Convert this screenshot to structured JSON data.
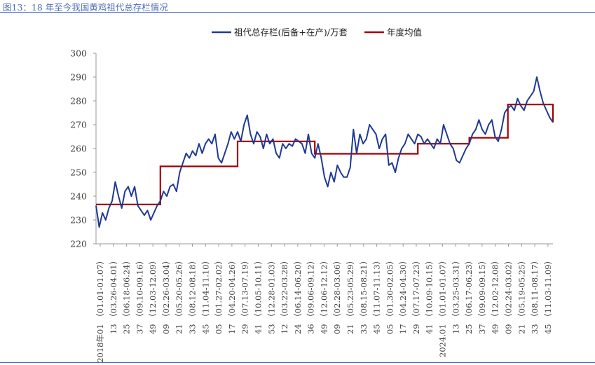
{
  "figure": {
    "title": "图13：18 年至今我国黄鸡祖代总存栏情况"
  },
  "chart_data": {
    "type": "line",
    "title": "",
    "xlabel": "",
    "ylabel": "",
    "ylim": [
      220,
      300
    ],
    "yticks": [
      220,
      230,
      240,
      250,
      260,
      270,
      280,
      290,
      300
    ],
    "grid": false,
    "legend_position": "top",
    "x_tick_labels": [
      "2018年01 （01.01-01.07）",
      "13 （03.26-04.01）",
      "25 （06.18-06.24）",
      "37 （09.10-09.16）",
      "49 （12.03-12.09）",
      "09 （02.26-03.04）",
      "21 （05.20-05.26）",
      "33 （08.12-08.18）",
      "45 （11.04-11.10）",
      "05 （01.27-02.02）",
      "17 （04.20-04.26）",
      "29 （07.13-07.19）",
      "41 （10.05-10.11）",
      "53 （12.28-01.03）",
      "12 （03.22-03.28）",
      "24 （06.14-06.20）",
      "36 （09.06-09.12）",
      "49 （12.06-12.12）",
      "09 （02.28-03.06）",
      "21 （05.23-05.29）",
      "33 （08.15-08.21）",
      "45 （11.07-11.13）",
      "05 （01.30-02.05）",
      "17 （04.24-04.30）",
      "29 （07.17-07.23）",
      "41 （10.09-10.15）",
      "2024.01 （01.01-01.07）",
      "13 （03.25-03.31）",
      "25 （06.17-06.23）",
      "37 （09.09-09.15）",
      "49 （12.02-12.08）",
      "09 （02.24-03.02）",
      "21 （05.19-05.25）",
      "33 （08.11-08.17）",
      "45 （11.03-11.09）"
    ],
    "series": [
      {
        "name": "祖代总存栏(后备+在产)/万套",
        "color": "#1f3a93",
        "anchors": [
          [
            0,
            236
          ],
          [
            2,
            227
          ],
          [
            4,
            233
          ],
          [
            6,
            230
          ],
          [
            8,
            235
          ],
          [
            10,
            238
          ],
          [
            12,
            246
          ],
          [
            14,
            240
          ],
          [
            16,
            235
          ],
          [
            18,
            242
          ],
          [
            20,
            244
          ],
          [
            22,
            240
          ],
          [
            24,
            244
          ],
          [
            26,
            236
          ],
          [
            28,
            234
          ],
          [
            30,
            232
          ],
          [
            32,
            234
          ],
          [
            34,
            230
          ],
          [
            36,
            233
          ],
          [
            38,
            236
          ],
          [
            40,
            238
          ],
          [
            42,
            242
          ],
          [
            44,
            240
          ],
          [
            46,
            244
          ],
          [
            48,
            245
          ],
          [
            50,
            242
          ],
          [
            52,
            250
          ],
          [
            54,
            254
          ],
          [
            56,
            258
          ],
          [
            58,
            256
          ],
          [
            60,
            259
          ],
          [
            62,
            257
          ],
          [
            64,
            262
          ],
          [
            66,
            258
          ],
          [
            68,
            262
          ],
          [
            70,
            264
          ],
          [
            72,
            262
          ],
          [
            74,
            266
          ],
          [
            76,
            256
          ],
          [
            78,
            254
          ],
          [
            80,
            258
          ],
          [
            82,
            262
          ],
          [
            84,
            267
          ],
          [
            86,
            264
          ],
          [
            88,
            267
          ],
          [
            90,
            263
          ],
          [
            92,
            270
          ],
          [
            94,
            274
          ],
          [
            96,
            266
          ],
          [
            98,
            262
          ],
          [
            100,
            267
          ],
          [
            102,
            265
          ],
          [
            104,
            260
          ],
          [
            106,
            266
          ],
          [
            108,
            262
          ],
          [
            110,
            264
          ],
          [
            112,
            258
          ],
          [
            114,
            256
          ],
          [
            116,
            262
          ],
          [
            118,
            260
          ],
          [
            120,
            262
          ],
          [
            122,
            261
          ],
          [
            124,
            264
          ],
          [
            126,
            263
          ],
          [
            128,
            262
          ],
          [
            130,
            258
          ],
          [
            132,
            266
          ],
          [
            134,
            258
          ],
          [
            136,
            256
          ],
          [
            138,
            262
          ],
          [
            140,
            256
          ],
          [
            142,
            248
          ],
          [
            144,
            244
          ],
          [
            146,
            250
          ],
          [
            148,
            246
          ],
          [
            150,
            253
          ],
          [
            152,
            250
          ],
          [
            154,
            248
          ],
          [
            156,
            248
          ],
          [
            158,
            252
          ],
          [
            160,
            268
          ],
          [
            162,
            258
          ],
          [
            164,
            266
          ],
          [
            166,
            262
          ],
          [
            168,
            264
          ],
          [
            170,
            270
          ],
          [
            172,
            268
          ],
          [
            174,
            266
          ],
          [
            176,
            260
          ],
          [
            178,
            264
          ],
          [
            180,
            266
          ],
          [
            182,
            253
          ],
          [
            184,
            254
          ],
          [
            186,
            250
          ],
          [
            188,
            256
          ],
          [
            190,
            260
          ],
          [
            192,
            262
          ],
          [
            194,
            266
          ],
          [
            196,
            264
          ],
          [
            198,
            262
          ],
          [
            200,
            266
          ],
          [
            202,
            265
          ],
          [
            204,
            262
          ],
          [
            206,
            264
          ],
          [
            208,
            262
          ],
          [
            210,
            260
          ],
          [
            212,
            264
          ],
          [
            214,
            262
          ],
          [
            216,
            270
          ],
          [
            218,
            266
          ],
          [
            220,
            262
          ],
          [
            222,
            260
          ],
          [
            224,
            255
          ],
          [
            226,
            254
          ],
          [
            228,
            257
          ],
          [
            230,
            260
          ],
          [
            232,
            262
          ],
          [
            234,
            266
          ],
          [
            236,
            268
          ],
          [
            238,
            272
          ],
          [
            240,
            268
          ],
          [
            242,
            266
          ],
          [
            244,
            270
          ],
          [
            246,
            272
          ],
          [
            248,
            265
          ],
          [
            250,
            263
          ],
          [
            252,
            268
          ],
          [
            254,
            275
          ],
          [
            256,
            277
          ],
          [
            258,
            278
          ],
          [
            260,
            276
          ],
          [
            262,
            281
          ],
          [
            264,
            278
          ],
          [
            266,
            276
          ],
          [
            268,
            280
          ],
          [
            270,
            282
          ],
          [
            272,
            284
          ],
          [
            274,
            290
          ],
          [
            276,
            284
          ],
          [
            278,
            279
          ],
          [
            280,
            276
          ],
          [
            282,
            273
          ],
          [
            284,
            271
          ]
        ]
      },
      {
        "name": "年度均值",
        "color": "#a00000",
        "steps": [
          {
            "x0": 0,
            "x1": 40,
            "value": 236.5
          },
          {
            "x0": 40,
            "x1": 88,
            "value": 252.5
          },
          {
            "x0": 88,
            "x1": 136,
            "value": 263.0
          },
          {
            "x0": 136,
            "x1": 200,
            "value": 257.8
          },
          {
            "x0": 200,
            "x1": 232,
            "value": 262.0
          },
          {
            "x0": 232,
            "x1": 256,
            "value": 264.5
          },
          {
            "x0": 256,
            "x1": 284,
            "value": 278.5
          }
        ],
        "end_value": 271
      }
    ]
  }
}
